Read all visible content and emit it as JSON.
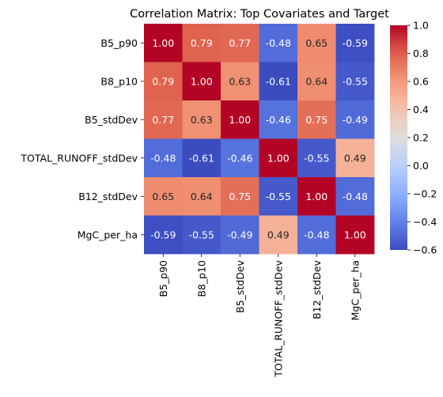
{
  "chart_data": {
    "type": "heatmap",
    "title": "Correlation Matrix: Top Covariates and Target",
    "xlabel": "",
    "ylabel": "",
    "row_labels": [
      "B5_p90",
      "B8_p10",
      "B5_stdDev",
      "TOTAL_RUNOFF_stdDev",
      "B12_stdDev",
      "MgC_per_ha"
    ],
    "col_labels": [
      "B5_p90",
      "B8_p10",
      "B5_stdDev",
      "TOTAL_RUNOFF_stdDev",
      "B12_stdDev",
      "MgC_per_ha"
    ],
    "values": [
      [
        1.0,
        0.79,
        0.77,
        -0.48,
        0.65,
        -0.59
      ],
      [
        0.79,
        1.0,
        0.63,
        -0.61,
        0.64,
        -0.55
      ],
      [
        0.77,
        0.63,
        1.0,
        -0.46,
        0.75,
        -0.49
      ],
      [
        -0.48,
        -0.61,
        -0.46,
        1.0,
        -0.55,
        0.49
      ],
      [
        0.65,
        0.64,
        0.75,
        -0.55,
        1.0,
        -0.48
      ],
      [
        -0.59,
        -0.55,
        -0.49,
        0.49,
        -0.48,
        1.0
      ]
    ],
    "cell_labels": [
      [
        "1.00",
        "0.79",
        "0.77",
        "-0.48",
        "0.65",
        "-0.59"
      ],
      [
        "0.79",
        "1.00",
        "0.63",
        "-0.61",
        "0.64",
        "-0.55"
      ],
      [
        "0.77",
        "0.63",
        "1.00",
        "-0.46",
        "0.75",
        "-0.49"
      ],
      [
        "-0.48",
        "-0.61",
        "-0.46",
        "1.00",
        "-0.55",
        "0.49"
      ],
      [
        "0.65",
        "0.64",
        "0.75",
        "-0.55",
        "1.00",
        "-0.48"
      ],
      [
        "-0.59",
        "-0.55",
        "-0.49",
        "0.49",
        "-0.48",
        "1.00"
      ]
    ],
    "colormap": "coolwarm",
    "color_range": [
      -0.6,
      1.0
    ],
    "colorbar_ticks": [
      1.0,
      0.8,
      0.6,
      0.4,
      0.2,
      0.0,
      -0.2,
      -0.4,
      -0.6
    ],
    "colorbar_tick_labels": [
      "1.0",
      "0.8",
      "0.6",
      "0.4",
      "0.2",
      "0.0",
      "−0.2",
      "−0.4",
      "−0.6"
    ],
    "colorbar_position": "right",
    "grid": false
  }
}
